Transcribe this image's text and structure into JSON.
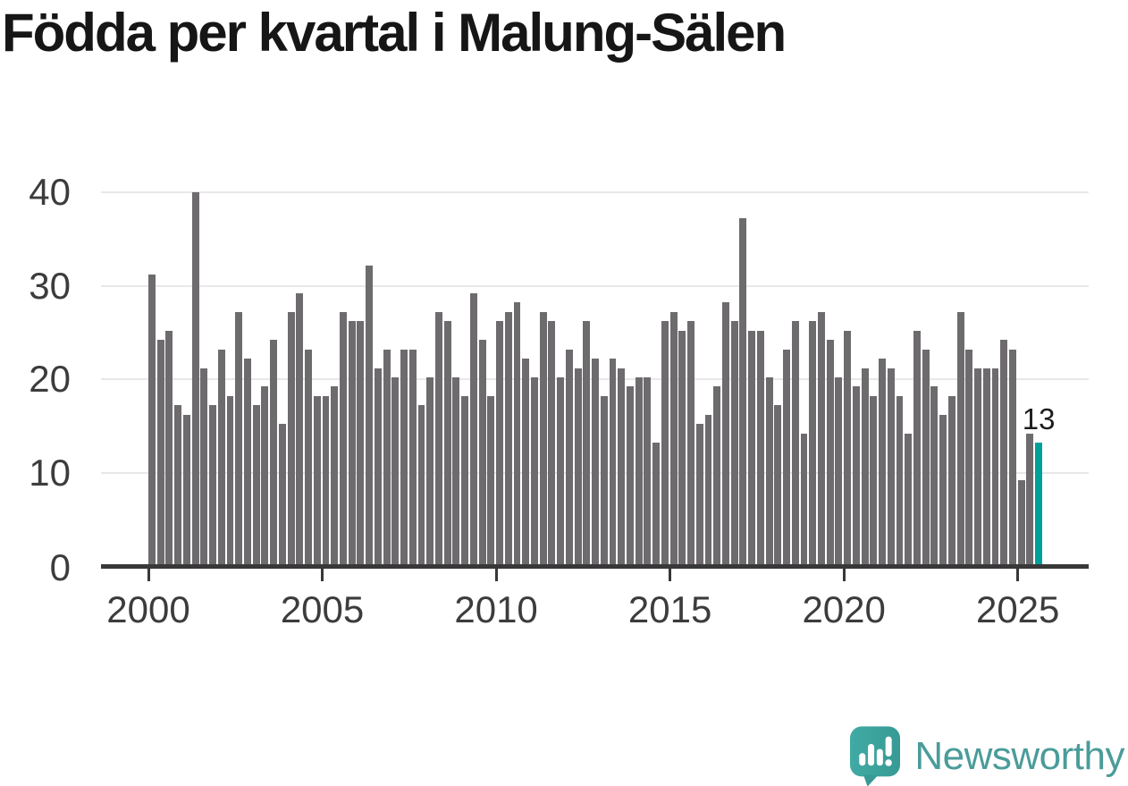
{
  "title": "Födda per kvartal i Malung-Sälen",
  "chart_data": {
    "type": "bar",
    "title": "Födda per kvartal i Malung-Sälen",
    "xlabel": "",
    "ylabel": "",
    "x_start": "2000-Q1",
    "x_end": "2025-Q3",
    "x_interval": "quarter",
    "values": [
      31,
      24,
      25,
      17,
      16,
      40,
      21,
      17,
      23,
      18,
      27,
      22,
      17,
      19,
      24,
      15,
      27,
      29,
      23,
      18,
      18,
      19,
      27,
      26,
      26,
      32,
      21,
      23,
      20,
      23,
      23,
      17,
      20,
      27,
      26,
      20,
      18,
      29,
      24,
      18,
      26,
      27,
      28,
      22,
      20,
      27,
      26,
      20,
      23,
      21,
      26,
      22,
      18,
      22,
      21,
      19,
      20,
      20,
      13,
      26,
      27,
      25,
      26,
      15,
      16,
      19,
      28,
      26,
      37,
      25,
      25,
      20,
      17,
      23,
      26,
      14,
      26,
      27,
      24,
      20,
      25,
      19,
      21,
      18,
      22,
      21,
      18,
      14,
      25,
      23,
      19,
      16,
      18,
      27,
      23,
      21,
      21,
      21,
      24,
      23,
      9,
      14,
      13
    ],
    "highlight": {
      "index": 102,
      "value": 13,
      "label": "13"
    },
    "x_tick_labels": [
      "2000",
      "2005",
      "2010",
      "2015",
      "2020",
      "2025"
    ],
    "x_tick_every_n_bars": 20,
    "y_ticks": [
      0,
      10,
      20,
      30,
      40
    ],
    "ylim": [
      0,
      40
    ],
    "grid": true,
    "legend": "none",
    "colors": {
      "bar": "#6e6b6e",
      "highlight": "#00a09a",
      "grid": "#e8e8e8",
      "axis": "#383838",
      "tick_text": "#3c3c3c"
    }
  },
  "annotation": {
    "last_value_label": "13"
  },
  "branding": {
    "name": "Newsworthy",
    "icon": "newsworthy-logo-icon",
    "icon_color": "#3ba39d",
    "text_color": "#4a9c9a"
  }
}
